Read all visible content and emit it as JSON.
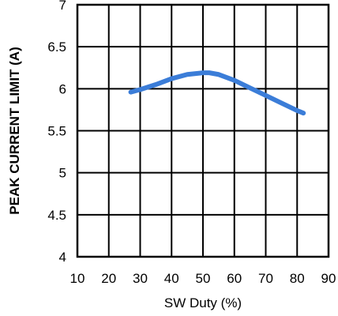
{
  "chart_data": {
    "type": "line",
    "title": "",
    "xlabel": "SW Duty (%)",
    "ylabel": "PEAK CURRENT LIMIT (A)",
    "xlim": [
      10,
      90
    ],
    "ylim": [
      4,
      7
    ],
    "x_ticks": [
      10,
      20,
      30,
      40,
      50,
      60,
      70,
      80,
      90
    ],
    "y_ticks": [
      4,
      4.5,
      5,
      5.5,
      6,
      6.5,
      7
    ],
    "x_tick_labels": [
      "10",
      "20",
      "30",
      "40",
      "50",
      "60",
      "70",
      "80",
      "90"
    ],
    "y_tick_labels": [
      "4",
      "4.5",
      "5",
      "5.5",
      "6",
      "6.5",
      "7"
    ],
    "grid": true,
    "legend": "none",
    "series": [
      {
        "color": "#3b7dd8",
        "x": [
          27,
          30,
          35,
          40,
          45,
          50,
          52,
          55,
          60,
          65,
          70,
          75,
          80,
          82
        ],
        "y": [
          5.96,
          5.99,
          6.05,
          6.12,
          6.17,
          6.19,
          6.19,
          6.17,
          6.1,
          6.01,
          5.92,
          5.83,
          5.74,
          5.71
        ]
      }
    ]
  }
}
